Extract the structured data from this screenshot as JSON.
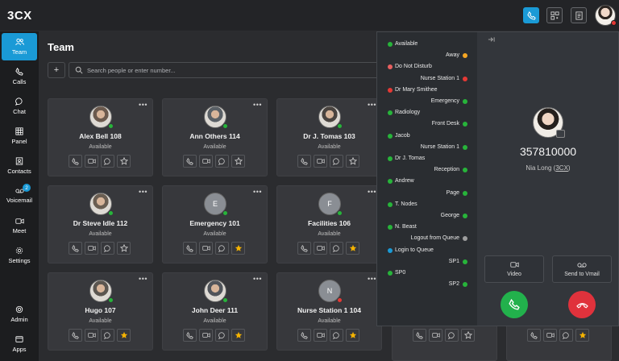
{
  "app": {
    "logo": "3CX"
  },
  "topbar": {
    "icons": [
      "phone-icon",
      "qr-icon",
      "document-icon"
    ]
  },
  "sidebar": {
    "items": [
      {
        "label": "Team",
        "icon": "team-icon",
        "active": true
      },
      {
        "label": "Calls",
        "icon": "phone-icon"
      },
      {
        "label": "Chat",
        "icon": "chat-icon"
      },
      {
        "label": "Panel",
        "icon": "grid-icon"
      },
      {
        "label": "Contacts",
        "icon": "contacts-icon"
      },
      {
        "label": "Voicemail",
        "icon": "voicemail-icon",
        "badge": "2"
      },
      {
        "label": "Meet",
        "icon": "meet-icon"
      },
      {
        "label": "Settings",
        "icon": "gear-icon"
      },
      {
        "label": "Admin",
        "icon": "admin-icon"
      },
      {
        "label": "Apps",
        "icon": "apps-icon"
      }
    ]
  },
  "main": {
    "title": "Team",
    "add_label": "+",
    "search_placeholder": "Search people or enter number..."
  },
  "cards": [
    {
      "name": "Alex Bell 108",
      "status": "Available",
      "initial": "",
      "presence": "#27b43a",
      "fav": false
    },
    {
      "name": "Ann Others 114",
      "status": "Available",
      "initial": "",
      "presence": "#27b43a",
      "fav": false
    },
    {
      "name": "Dr J. Tomas 103",
      "status": "Available",
      "initial": "",
      "presence": "#27b43a",
      "fav": false
    },
    {
      "name": "Dr Steve Idle 112",
      "status": "Available",
      "initial": "",
      "presence": "#27b43a",
      "fav": false
    },
    {
      "name": "Emergency 101",
      "status": "Available",
      "initial": "E",
      "presence": "#27b43a",
      "fav": true
    },
    {
      "name": "Facilities 106",
      "status": "Available",
      "initial": "F",
      "presence": "#27b43a",
      "fav": true
    },
    {
      "name": "Hugo 107",
      "status": "Available",
      "initial": "",
      "presence": "#27b43a",
      "fav": true
    },
    {
      "name": "John Deer 111",
      "status": "Available",
      "initial": "",
      "presence": "#27b43a",
      "fav": true
    },
    {
      "name": "Nurse Station 1 104",
      "status": "Available",
      "initial": "N",
      "presence": "#e53935",
      "fav": true
    }
  ],
  "presence_list": [
    {
      "label": "Available",
      "side": "left",
      "color": "#27b43a"
    },
    {
      "label": "Away",
      "side": "right",
      "color": "#f5a623"
    },
    {
      "label": "Do Not Disturb",
      "side": "left",
      "color": "#e86060"
    },
    {
      "label": "Nurse Station 1",
      "side": "right",
      "color": "#e53935"
    },
    {
      "label": "Dr Mary Smithee",
      "side": "left",
      "color": "#e53935"
    },
    {
      "label": "Emergency",
      "side": "right",
      "color": "#27b43a"
    },
    {
      "label": "Radiology",
      "side": "left",
      "color": "#27b43a"
    },
    {
      "label": "Front Desk",
      "side": "right",
      "color": "#27b43a"
    },
    {
      "label": "Jacob",
      "side": "left",
      "color": "#27b43a"
    },
    {
      "label": "Nurse Station 1",
      "side": "right",
      "color": "#27b43a"
    },
    {
      "label": "Dr J. Tomas",
      "side": "left",
      "color": "#27b43a"
    },
    {
      "label": "Reception",
      "side": "right",
      "color": "#27b43a"
    },
    {
      "label": "Andrew",
      "side": "left",
      "color": "#27b43a"
    },
    {
      "label": "Page",
      "side": "right",
      "color": "#27b43a"
    },
    {
      "label": "T. Nodes",
      "side": "left",
      "color": "#27b43a"
    },
    {
      "label": "George",
      "side": "right",
      "color": "#27b43a"
    },
    {
      "label": "N. Beast",
      "side": "left",
      "color": "#27b43a"
    },
    {
      "label": "Logout from Queue",
      "side": "right",
      "color": "#9e9e9e"
    },
    {
      "label": "Login to Queue",
      "side": "left",
      "color": "#1a9ad6"
    },
    {
      "label": "SP1",
      "side": "right",
      "color": "#27b43a"
    },
    {
      "label": "SP0",
      "side": "left",
      "color": "#27b43a"
    },
    {
      "label": "SP2",
      "side": "right",
      "color": "#27b43a"
    }
  ],
  "call": {
    "number": "357810000",
    "caller_name": "Nia Long",
    "caller_tag": "3CX",
    "video_label": "Video",
    "vmail_label": "Send to Vmail"
  }
}
